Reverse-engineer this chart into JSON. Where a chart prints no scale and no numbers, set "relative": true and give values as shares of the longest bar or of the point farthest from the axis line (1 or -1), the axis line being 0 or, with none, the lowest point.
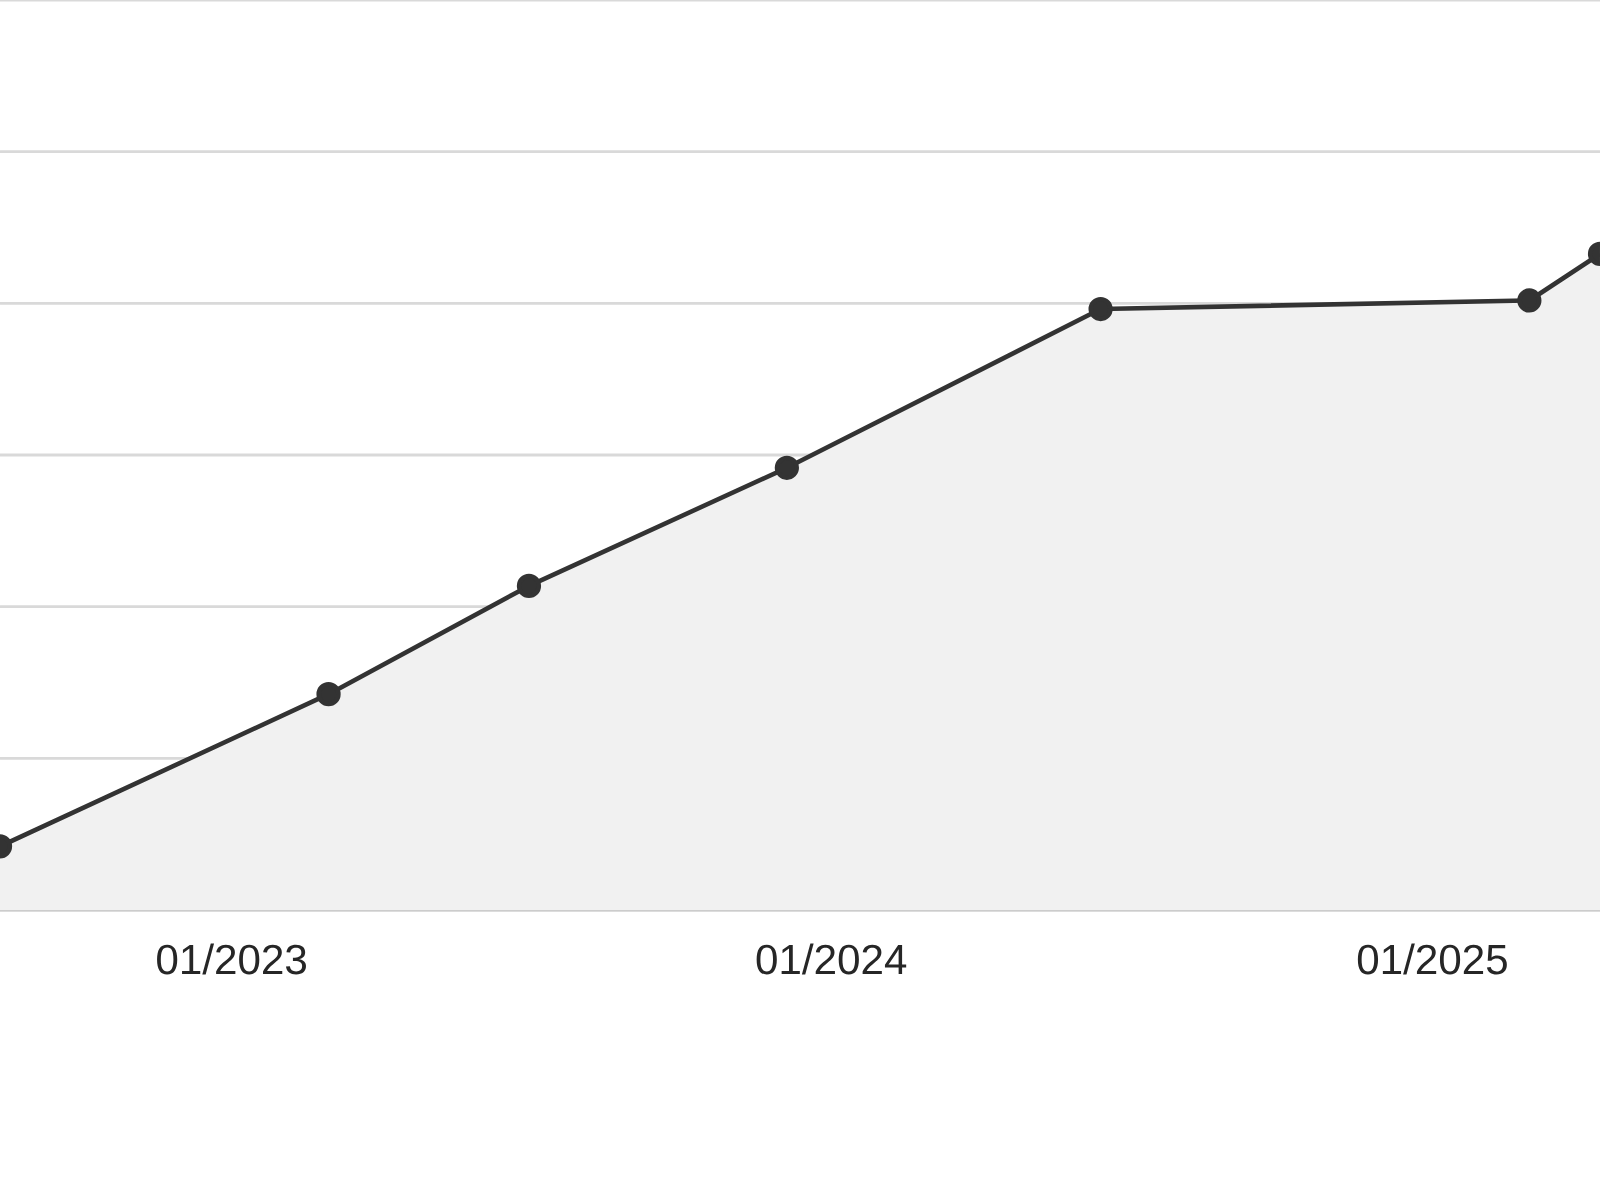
{
  "chart_data": {
    "type": "area",
    "relative": true,
    "color": "#333333",
    "marker": "circle",
    "grid": "y",
    "tick_labels": "x",
    "x": [
      "2022-08-13",
      "2023-03-01",
      "2023-07-01",
      "2023-12-05",
      "2024-06-13",
      "2025-03-01",
      "2025-04-13"
    ],
    "values": [
      0.097,
      0.329,
      0.494,
      0.674,
      0.916,
      0.929,
      1
    ],
    "xlim": [
      "2022-08-13",
      "2025-04-13"
    ],
    "xticks": [
      {
        "value": "2023-01-01",
        "label": "01/2023"
      },
      {
        "value": "2024-01-01",
        "label": "01/2024"
      },
      {
        "value": "2025-01-01",
        "label": "01/2025"
      }
    ]
  }
}
